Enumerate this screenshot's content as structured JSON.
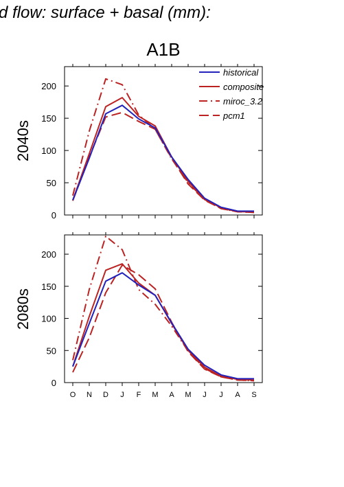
{
  "figure": {
    "title": "d flow: surface + basal (mm):",
    "panel_title": "A1B"
  },
  "legend": [
    {
      "name": "historical",
      "color": "#2222bb",
      "dash": "solid"
    },
    {
      "name": "composite",
      "color": "#bb2222",
      "dash": "solid"
    },
    {
      "name": "miroc_3.2",
      "color": "#bb2222",
      "dash": "dashdot"
    },
    {
      "name": "pcm1",
      "color": "#bb2222",
      "dash": "dashed"
    }
  ],
  "chart_data": [
    {
      "type": "line",
      "row_label": "2040s",
      "categories": [
        "O",
        "N",
        "D",
        "J",
        "F",
        "M",
        "A",
        "M",
        "J",
        "J",
        "A",
        "S"
      ],
      "ylim": [
        0,
        230
      ],
      "yticks": [
        0,
        50,
        100,
        150,
        200
      ],
      "series": [
        {
          "name": "historical",
          "values": [
            23,
            88,
            157,
            170,
            149,
            135,
            90,
            55,
            26,
            12,
            6,
            6
          ]
        },
        {
          "name": "composite",
          "values": [
            23,
            95,
            168,
            182,
            153,
            138,
            90,
            52,
            25,
            11,
            5,
            5
          ]
        },
        {
          "name": "miroc_3.2",
          "values": [
            30,
            130,
            211,
            202,
            155,
            133,
            87,
            50,
            24,
            10,
            5,
            4
          ]
        },
        {
          "name": "pcm1",
          "values": [
            22,
            90,
            152,
            159,
            145,
            133,
            88,
            48,
            23,
            10,
            5,
            4
          ]
        }
      ]
    },
    {
      "type": "line",
      "row_label": "2080s",
      "categories": [
        "O",
        "N",
        "D",
        "J",
        "F",
        "M",
        "A",
        "M",
        "J",
        "J",
        "A",
        "S"
      ],
      "ylim": [
        0,
        230
      ],
      "yticks": [
        0,
        50,
        100,
        150,
        200
      ],
      "series": [
        {
          "name": "historical",
          "values": [
            25,
            92,
            158,
            171,
            152,
            136,
            93,
            52,
            27,
            12,
            6,
            6
          ]
        },
        {
          "name": "composite",
          "values": [
            25,
            103,
            175,
            185,
            155,
            136,
            92,
            50,
            24,
            10,
            5,
            4
          ]
        },
        {
          "name": "miroc_3.2",
          "values": [
            35,
            145,
            228,
            207,
            145,
            122,
            88,
            49,
            22,
            9,
            4,
            3
          ]
        },
        {
          "name": "pcm1",
          "values": [
            16,
            70,
            140,
            183,
            168,
            146,
            94,
            48,
            21,
            9,
            4,
            3
          ]
        }
      ]
    }
  ]
}
